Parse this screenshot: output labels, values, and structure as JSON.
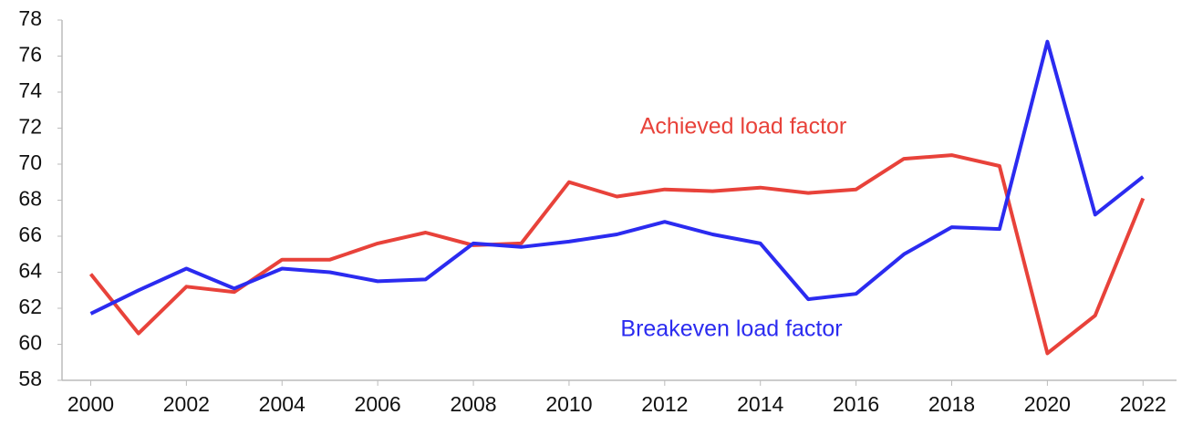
{
  "chart_data": {
    "type": "line",
    "x": [
      2000,
      2001,
      2002,
      2003,
      2004,
      2005,
      2006,
      2007,
      2008,
      2009,
      2010,
      2011,
      2012,
      2013,
      2014,
      2015,
      2016,
      2017,
      2018,
      2019,
      2020,
      2021,
      2022
    ],
    "series": [
      {
        "name": "Achieved load factor",
        "color": "#e8423a",
        "values": [
          63.9,
          60.6,
          63.2,
          62.9,
          64.7,
          64.7,
          65.6,
          66.2,
          65.5,
          65.6,
          69.0,
          68.2,
          68.6,
          68.5,
          68.7,
          68.4,
          68.6,
          70.3,
          70.5,
          69.9,
          59.5,
          61.6,
          68.1
        ]
      },
      {
        "name": "Breakeven load factor",
        "color": "#2b2bf0",
        "values": [
          61.7,
          63.0,
          64.2,
          63.1,
          64.2,
          64.0,
          63.5,
          63.6,
          65.6,
          65.4,
          65.7,
          66.1,
          66.8,
          66.1,
          65.6,
          62.5,
          62.8,
          65.0,
          66.5,
          66.4,
          76.8,
          67.2,
          69.3
        ]
      }
    ],
    "xlim": [
      1999.4,
      2022.7
    ],
    "xticks": [
      2000,
      2002,
      2004,
      2006,
      2008,
      2010,
      2012,
      2014,
      2016,
      2018,
      2020,
      2022
    ],
    "ylim": [
      58,
      78
    ],
    "yticks": [
      58,
      60,
      62,
      64,
      66,
      68,
      70,
      72,
      74,
      76,
      78
    ],
    "grid": false
  }
}
